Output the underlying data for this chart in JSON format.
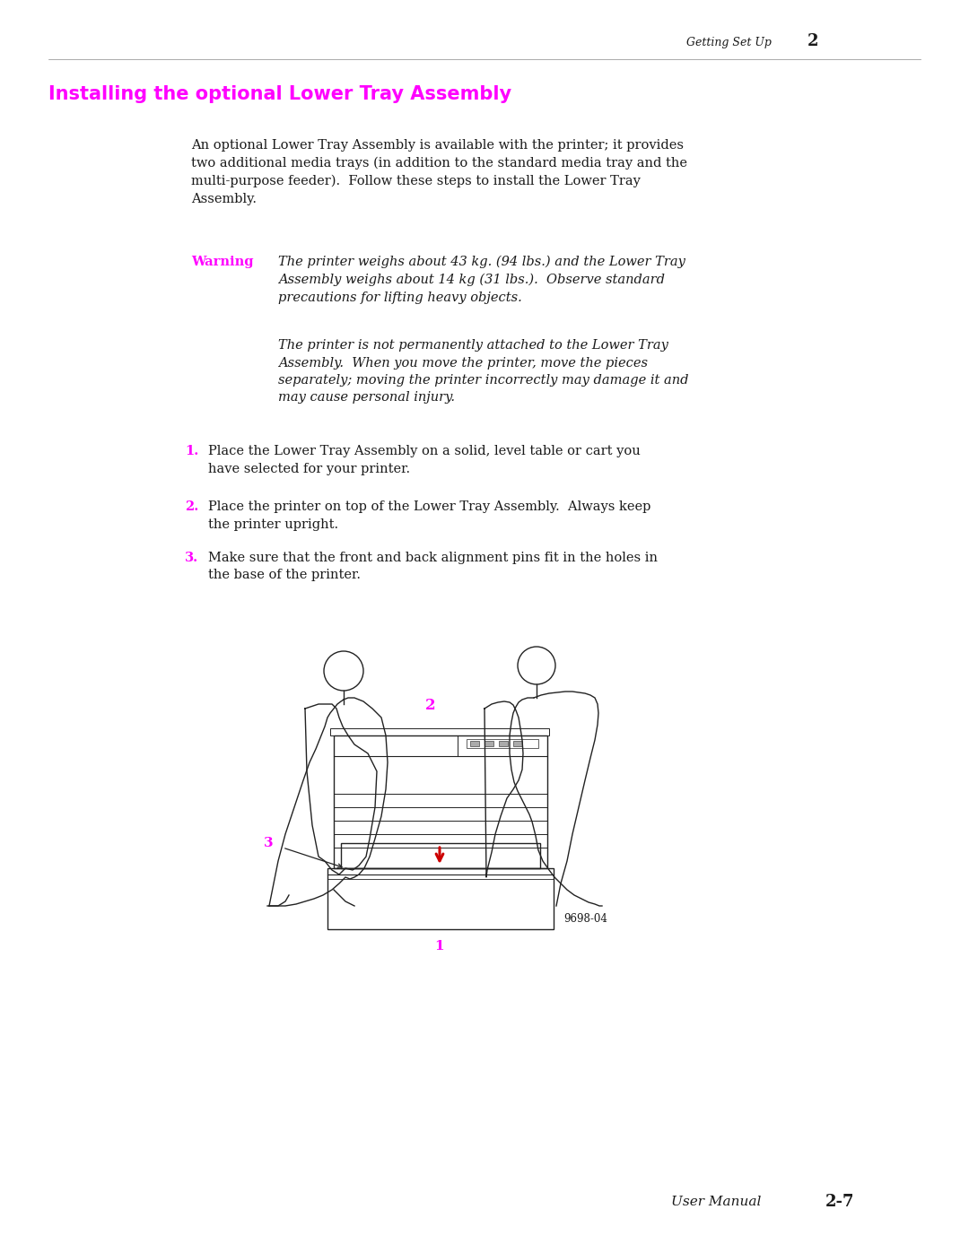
{
  "bg_color": "#ffffff",
  "page_width": 10.8,
  "page_height": 13.97,
  "header_text": "Getting Set Up",
  "header_number": "2",
  "section_title": "Installing the optional Lower Tray Assembly",
  "section_title_color": "#ff00ff",
  "intro_text": "An optional Lower Tray Assembly is available with the printer; it provides\ntwo additional media trays (in addition to the standard media tray and the\nmulti-purpose feeder).  Follow these steps to install the Lower Tray\nAssembly.",
  "warning_label": "Warning",
  "warning_label_color": "#ff00ff",
  "warning_text1": "The printer weighs about 43 kg. (94 lbs.) and the Lower Tray\nAssembly weighs about 14 kg (31 lbs.).  Observe standard\nprecautions for lifting heavy objects.",
  "warning_text2": "The printer is not permanently attached to the Lower Tray\nAssembly.  When you move the printer, move the pieces\nseparately; moving the printer incorrectly may damage it and\nmay cause personal injury.",
  "step1_num": "1.",
  "step1_text": "Place the Lower Tray Assembly on a solid, level table or cart you\nhave selected for your printer.",
  "step2_num": "2.",
  "step2_text": "Place the printer on top of the Lower Tray Assembly.  Always keep\nthe printer upright.",
  "step3_num": "3.",
  "step3_text": "Make sure that the front and back alignment pins fit in the holes in\nthe base of the printer.",
  "step_num_color": "#ff00ff",
  "body_text_color": "#1a1a1a",
  "italic_text_color": "#1a1a1a",
  "figure_label": "9698-04",
  "footer_text": "User Manual",
  "footer_page": "2-7"
}
